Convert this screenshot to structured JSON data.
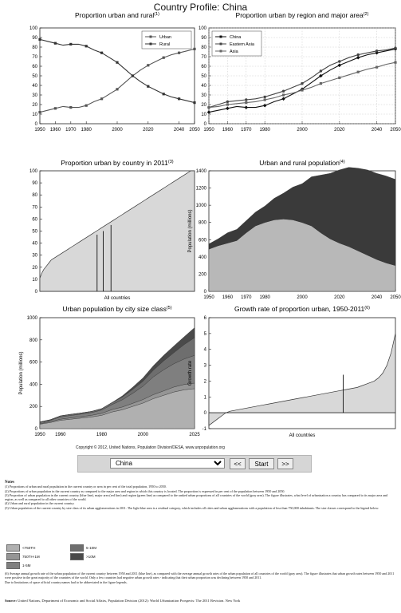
{
  "page": {
    "title": "Country Profile: China",
    "copyright": "Copyright © 2012, United Nations, Population Division/DESA, www.unpopulation.org"
  },
  "nav": {
    "country": "China",
    "prev_label": "<<",
    "start_label": "Start",
    "next_label": ">>"
  },
  "notes": {
    "header": "Notes",
    "n1": "(1) Proportions of urban and rural population in the current country or area in per cent of the total population, 1950 to 2050.",
    "n2": "(2) Proportions of urban population in the current country as compared to the major area and region in which this country is located. The proportion is expressed in per cent of the population between 1950 and 2050.",
    "n3": "(3) Proportion of urban population in the current country (blue line), major area (red line) and region (green line) as compared to the ranked urban proportions of all countries of the world (gray area). The figure illustrates, what level of urbanization a country has compared to its major area and region, as well as compared to all other countries of the world.",
    "n4": "(4) Urban and rural population in the current country.",
    "n5": "(5) Urban population of the current country by size class of its urban agglomerations in 2011. The light blue area is a residual category, which includes all cities and urban agglomerations with a population of less than 750,000 inhabitants. The size classes correspond to the legend below:",
    "n6": "(6) Average annual growth rate of the urban population of the current country between 1950 and 2011 (blue line), as compared with the average annual growth rates of the urban population of all countries of the world (gray area). The figure illustrates that urban growth rates between 1950 and 2011 were positive in the great majority of the countries of the world. Only a few countries had negative urban growth rates - indicating that their urban proportion was declining between 1950 and 2011.",
    "n7": "Due to limitations of space official country names had to be abbreviated in the figure legends.",
    "source_label": "Source:",
    "source_text": "United Nations, Department of Economic and Social Affairs, Population Division (2012): World Urbanization Prospects: The 2011 Revision. New York",
    "legend": [
      {
        "label": "<750TH",
        "color": "#b0b0b0"
      },
      {
        "label": "5-10M",
        "color": "#6e6e6e"
      },
      {
        "label": "750TH-1M",
        "color": "#959595"
      },
      {
        "label": ">10M",
        "color": "#4a4a4a"
      },
      {
        "label": "1-5M",
        "color": "#7f7f7f"
      }
    ]
  },
  "chart_data": [
    {
      "type": "line",
      "title": "Proportion urban and rural",
      "title_note": "(1)",
      "x": [
        1950,
        1955,
        1960,
        1965,
        1970,
        1975,
        1980,
        1985,
        1990,
        1995,
        2000,
        2005,
        2010,
        2015,
        2020,
        2025,
        2030,
        2035,
        2040,
        2045,
        2050
      ],
      "series": [
        {
          "name": "Urban",
          "values": [
            12,
            14,
            16,
            18,
            17,
            17,
            19,
            23,
            26,
            31,
            36,
            43,
            50,
            56,
            61,
            65,
            69,
            72,
            74,
            76,
            78
          ]
        },
        {
          "name": "Rural",
          "values": [
            88,
            86,
            84,
            82,
            83,
            83,
            81,
            77,
            74,
            69,
            64,
            57,
            50,
            44,
            39,
            35,
            31,
            28,
            26,
            24,
            22
          ]
        }
      ],
      "xlim": [
        1950,
        2050
      ],
      "ylim": [
        0,
        100
      ],
      "xticks": [
        1950,
        1960,
        1970,
        1980,
        2000,
        2020,
        2040,
        2050
      ],
      "yticks": [
        0,
        10,
        20,
        30,
        40,
        50,
        60,
        70,
        80,
        90,
        100
      ],
      "legend": "top-right",
      "grid": false
    },
    {
      "type": "line",
      "title": "Proportion urban by region and major area",
      "title_note": "(2)",
      "x": [
        1950,
        1955,
        1960,
        1965,
        1970,
        1975,
        1980,
        1985,
        1990,
        1995,
        2000,
        2005,
        2010,
        2015,
        2020,
        2025,
        2030,
        2035,
        2040,
        2045,
        2050
      ],
      "series": [
        {
          "name": "China",
          "values": [
            12,
            14,
            16,
            18,
            17,
            17,
            19,
            23,
            26,
            31,
            36,
            43,
            50,
            56,
            61,
            65,
            69,
            72,
            74,
            76,
            78
          ]
        },
        {
          "name": "Eastern Asia",
          "values": [
            17,
            20,
            23,
            24,
            25,
            26,
            28,
            31,
            34,
            38,
            42,
            48,
            55,
            61,
            65,
            69,
            72,
            74,
            76,
            77,
            79
          ]
        },
        {
          "name": "Asia",
          "values": [
            17,
            18,
            20,
            21,
            22,
            23,
            25,
            27,
            30,
            32,
            35,
            38,
            42,
            45,
            48,
            51,
            54,
            57,
            59,
            62,
            64
          ]
        }
      ],
      "xlim": [
        1950,
        2050
      ],
      "ylim": [
        0,
        100
      ],
      "xticks": [
        1950,
        1960,
        1970,
        1980,
        2000,
        2020,
        2040,
        2050
      ],
      "yticks": [
        0,
        10,
        20,
        30,
        40,
        50,
        60,
        70,
        80,
        90,
        100
      ],
      "legend": "top-left",
      "grid": true
    },
    {
      "type": "area",
      "title": "Proportion urban by country in 2011",
      "title_note": "(3)",
      "xlabel": "All countries",
      "ranked_values": [
        11,
        15,
        18,
        20,
        22,
        24,
        26,
        27,
        28,
        29,
        30,
        31,
        32,
        33,
        34,
        35,
        36,
        37,
        38,
        39,
        40,
        41,
        42,
        43,
        44,
        45,
        46,
        47,
        48,
        49,
        50,
        51,
        52,
        53,
        54,
        55,
        56,
        57,
        58,
        59,
        60,
        61,
        62,
        63,
        64,
        65,
        66,
        67,
        68,
        69,
        70,
        71,
        72,
        73,
        74,
        75,
        76,
        77,
        78,
        79,
        80,
        81,
        82,
        83,
        84,
        85,
        86,
        87,
        88,
        89,
        90,
        91,
        92,
        93,
        94,
        95,
        96,
        97,
        98,
        99,
        100,
        100,
        100
      ],
      "marker_lines": [
        {
          "rank_fraction": 0.37,
          "value": 47
        },
        {
          "rank_fraction": 0.41,
          "value": 50
        },
        {
          "rank_fraction": 0.46,
          "value": 55
        }
      ],
      "ylim": [
        0,
        100
      ],
      "yticks": [
        0,
        10,
        20,
        30,
        40,
        50,
        60,
        70,
        80,
        90,
        100
      ]
    },
    {
      "type": "area",
      "title": "Urban and rural population",
      "title_note": "(4)",
      "ylabel": "Population (millions)",
      "x": [
        1950,
        1955,
        1960,
        1965,
        1970,
        1975,
        1980,
        1985,
        1990,
        1995,
        2000,
        2005,
        2010,
        2015,
        2020,
        2025,
        2030,
        2035,
        2040,
        2045,
        2050
      ],
      "series": [
        {
          "name": "Rural",
          "values": [
            490,
            530,
            560,
            590,
            680,
            760,
            800,
            830,
            840,
            830,
            800,
            760,
            680,
            610,
            560,
            520,
            470,
            420,
            370,
            330,
            300
          ]
        },
        {
          "name": "Urban",
          "values": [
            60,
            80,
            120,
            130,
            140,
            160,
            190,
            250,
            300,
            380,
            450,
            570,
            670,
            760,
            850,
            920,
            960,
            990,
            1000,
            1010,
            1000
          ]
        }
      ],
      "xlim": [
        1950,
        2050
      ],
      "ylim": [
        0,
        1400
      ],
      "xticks": [
        1950,
        1960,
        1970,
        1980,
        2000,
        2020,
        2040,
        2050
      ],
      "yticks": [
        0,
        200,
        400,
        600,
        800,
        1000,
        1200,
        1400
      ]
    },
    {
      "type": "area",
      "title": "Urban population by city size class",
      "title_note": "(5)",
      "ylabel": "Population (millions)",
      "x": [
        1950,
        1955,
        1960,
        1965,
        1970,
        1975,
        1980,
        1985,
        1990,
        1995,
        2000,
        2005,
        2010,
        2015,
        2020,
        2025
      ],
      "series": [
        {
          "name": "<750TH",
          "values": [
            40,
            55,
            75,
            85,
            95,
            105,
            120,
            150,
            170,
            200,
            230,
            270,
            300,
            330,
            350,
            360
          ]
        },
        {
          "name": "750TH-1M",
          "values": [
            5,
            8,
            10,
            12,
            13,
            15,
            18,
            22,
            25,
            28,
            32,
            36,
            40,
            45,
            48,
            50
          ]
        },
        {
          "name": "1-5M",
          "values": [
            10,
            12,
            20,
            22,
            23,
            25,
            30,
            45,
            65,
            90,
            120,
            160,
            190,
            210,
            230,
            250
          ]
        },
        {
          "name": "5-10M",
          "values": [
            5,
            5,
            10,
            10,
            10,
            10,
            12,
            18,
            25,
            35,
            45,
            60,
            80,
            100,
            130,
            160
          ]
        },
        {
          "name": ">10M",
          "values": [
            0,
            0,
            0,
            0,
            0,
            0,
            0,
            0,
            10,
            20,
            30,
            40,
            50,
            60,
            70,
            90
          ]
        }
      ],
      "xlim": [
        1950,
        2025
      ],
      "ylim": [
        0,
        1000
      ],
      "xticks": [
        1950,
        1960,
        1980,
        2000,
        2025
      ],
      "yticks": [
        0,
        200,
        400,
        600,
        800,
        1000
      ]
    },
    {
      "type": "area",
      "title": "Growth rate of proportion urban, 1950-2011",
      "title_note": "(6)",
      "xlabel": "All countries",
      "ylabel": "Growth rate",
      "ranked_values": [
        -0.8,
        -0.6,
        -0.4,
        -0.2,
        0.0,
        0.1,
        0.15,
        0.2,
        0.25,
        0.3,
        0.35,
        0.4,
        0.45,
        0.5,
        0.55,
        0.6,
        0.65,
        0.7,
        0.75,
        0.8,
        0.85,
        0.9,
        0.95,
        1.0,
        1.05,
        1.1,
        1.15,
        1.2,
        1.25,
        1.3,
        1.35,
        1.4,
        1.45,
        1.5,
        1.55,
        1.6,
        1.7,
        1.8,
        1.9,
        2.0,
        2.2,
        2.5,
        3.0,
        3.8,
        5.0
      ],
      "marker_lines": [
        {
          "rank_fraction": 0.72,
          "value": 2.4
        }
      ],
      "ylim": [
        -1,
        6
      ],
      "yticks": [
        -1,
        0,
        1,
        2,
        3,
        4,
        5,
        6
      ]
    }
  ]
}
